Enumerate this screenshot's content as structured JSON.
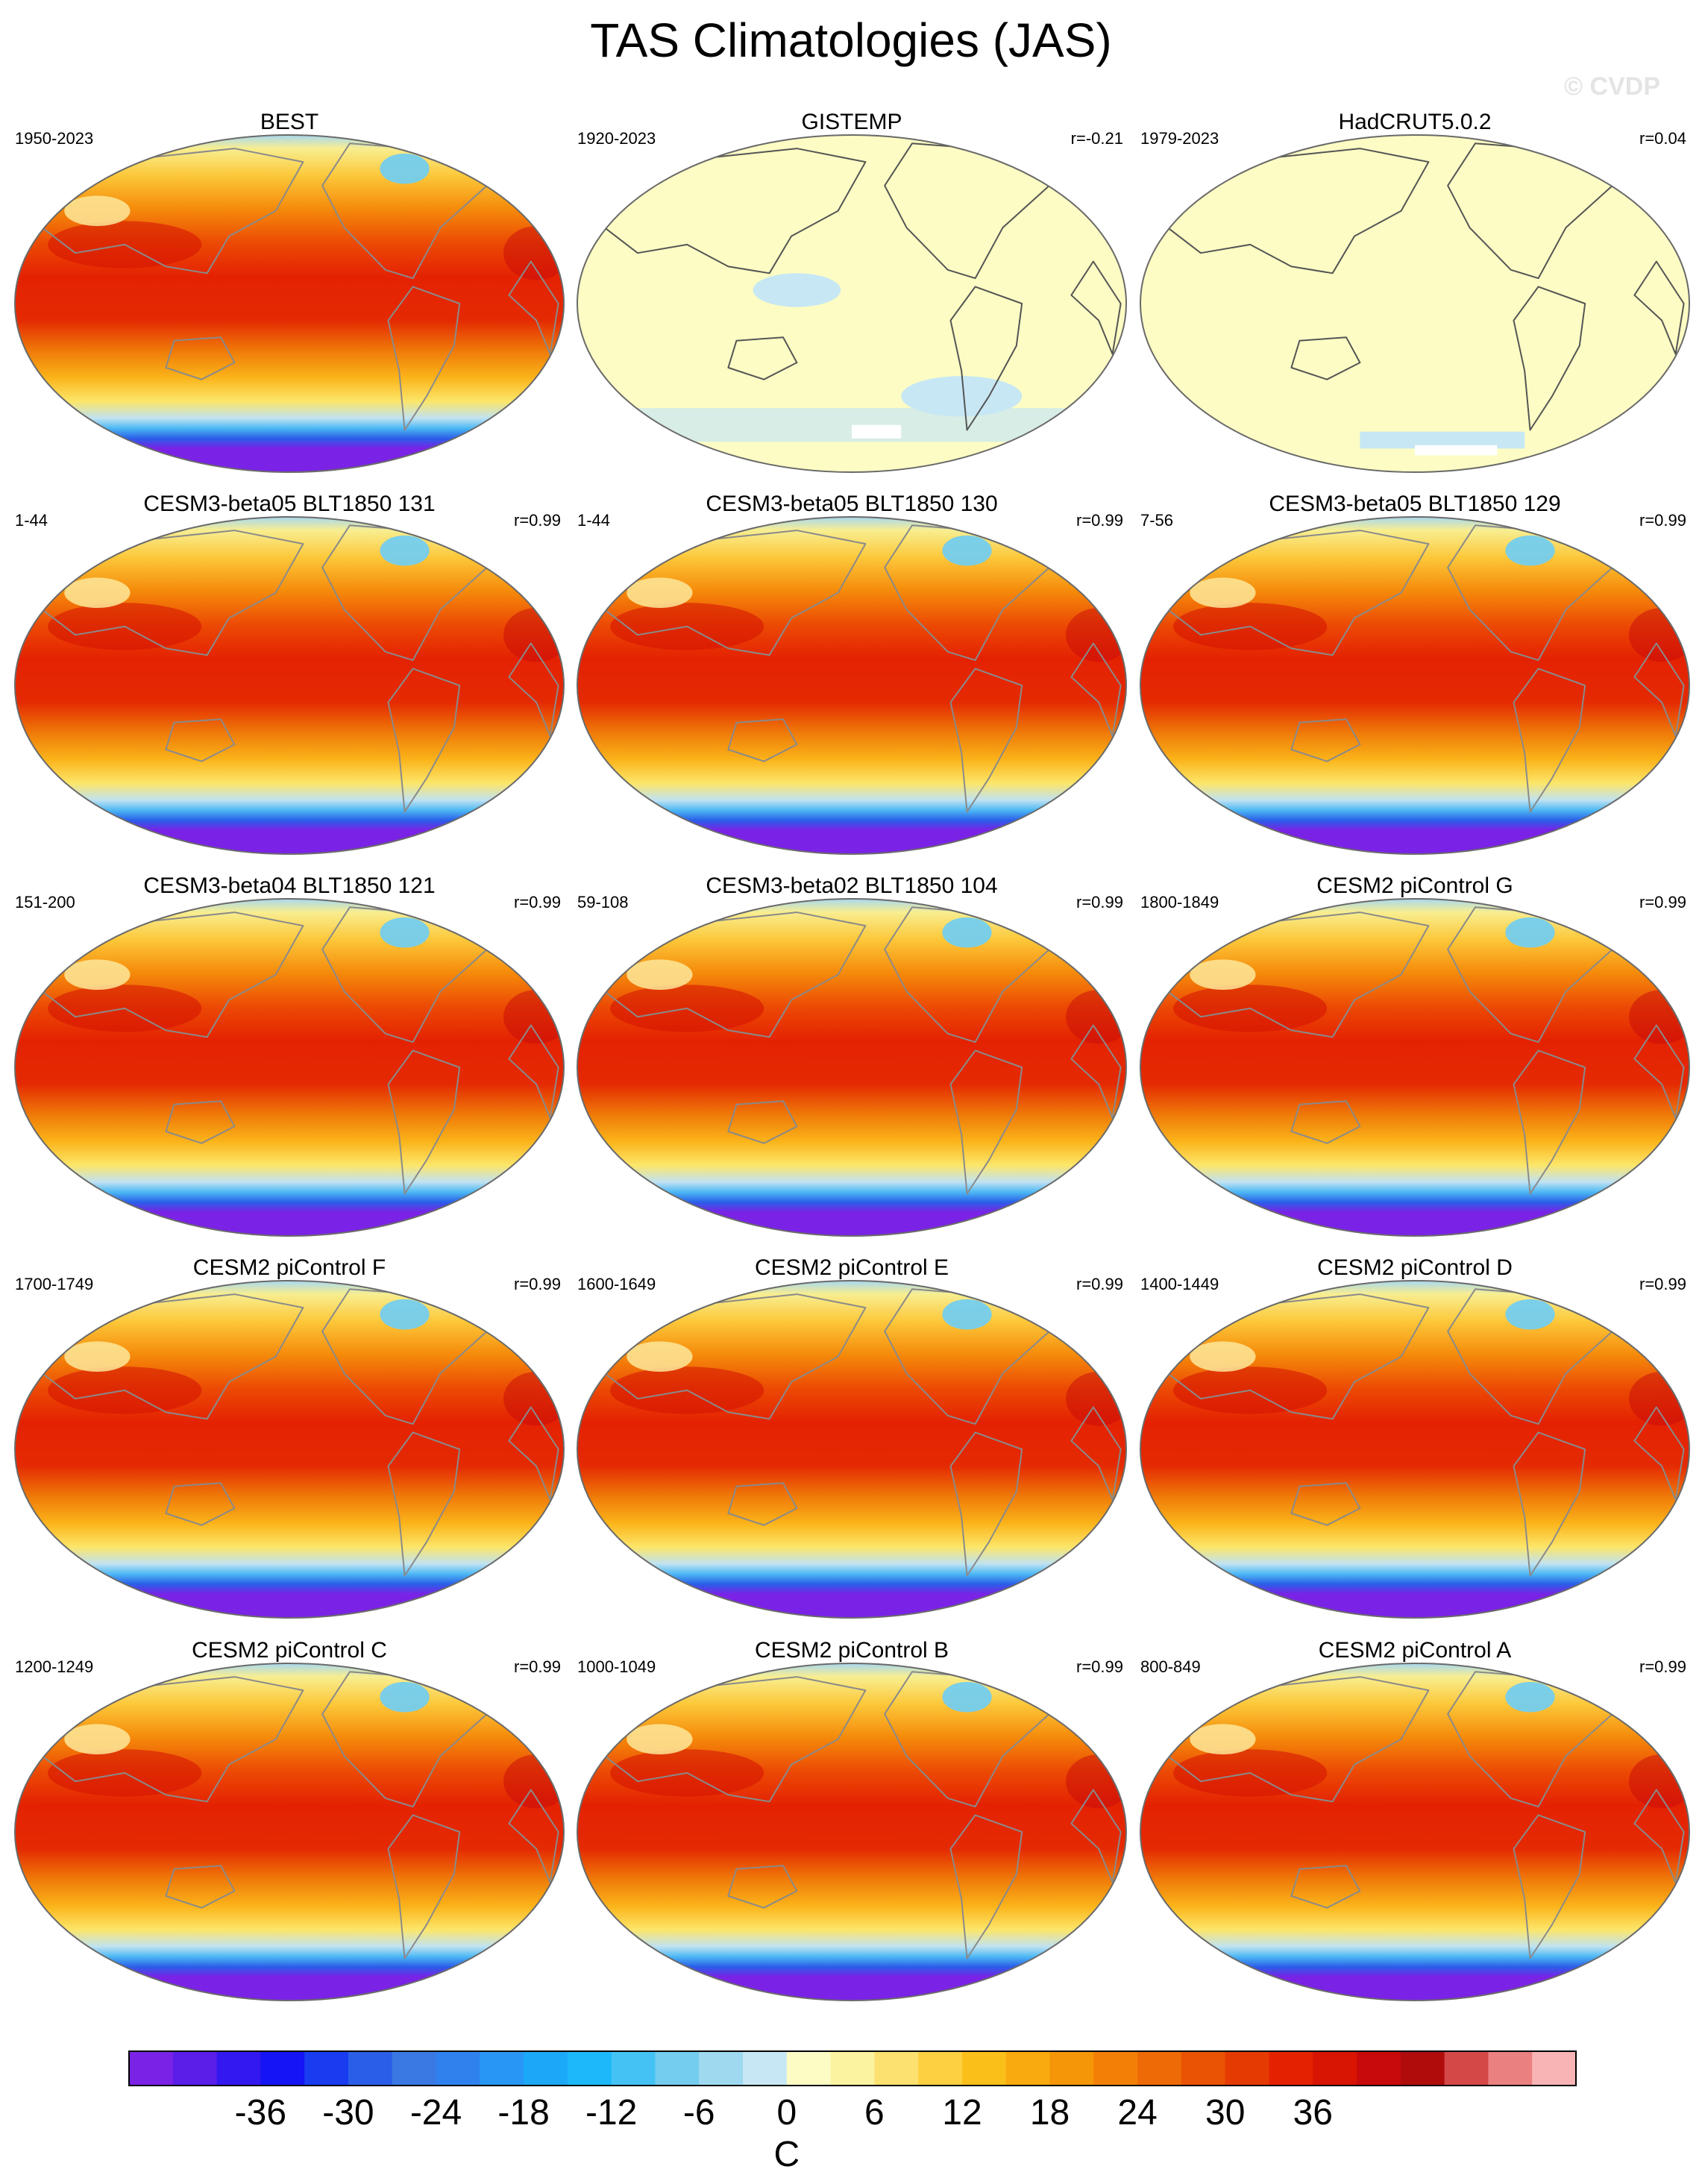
{
  "title": "TAS Climatologies (JAS)",
  "watermark": "© CVDP",
  "panels": [
    {
      "title": "BEST",
      "period": "1950-2023",
      "corr": "",
      "style": "full"
    },
    {
      "title": "GISTEMP",
      "period": "1920-2023",
      "corr": "r=-0.21",
      "style": "pale"
    },
    {
      "title": "HadCRUT5.0.2",
      "period": "1979-2023",
      "corr": "r=0.04",
      "style": "pale2"
    },
    {
      "title": "CESM3-beta05 BLT1850 131",
      "period": "1-44",
      "corr": "r=0.99",
      "style": "full"
    },
    {
      "title": "CESM3-beta05 BLT1850 130",
      "period": "1-44",
      "corr": "r=0.99",
      "style": "full"
    },
    {
      "title": "CESM3-beta05 BLT1850 129",
      "period": "7-56",
      "corr": "r=0.99",
      "style": "full"
    },
    {
      "title": "CESM3-beta04 BLT1850 121",
      "period": "151-200",
      "corr": "r=0.99",
      "style": "full"
    },
    {
      "title": "CESM3-beta02 BLT1850 104",
      "period": "59-108",
      "corr": "r=0.99",
      "style": "full"
    },
    {
      "title": "CESM2 piControl G",
      "period": "1800-1849",
      "corr": "r=0.99",
      "style": "full"
    },
    {
      "title": "CESM2 piControl F",
      "period": "1700-1749",
      "corr": "r=0.99",
      "style": "full"
    },
    {
      "title": "CESM2 piControl E",
      "period": "1600-1649",
      "corr": "r=0.99",
      "style": "full"
    },
    {
      "title": "CESM2 piControl D",
      "period": "1400-1449",
      "corr": "r=0.99",
      "style": "full"
    },
    {
      "title": "CESM2 piControl C",
      "period": "1200-1249",
      "corr": "r=0.99",
      "style": "full"
    },
    {
      "title": "CESM2 piControl B",
      "period": "1000-1049",
      "corr": "r=0.99",
      "style": "full"
    },
    {
      "title": "CESM2 piControl A",
      "period": "800-849",
      "corr": "r=0.99",
      "style": "full"
    }
  ],
  "colorbar": {
    "unit": "C",
    "tick_labels": [
      "-36",
      "-30",
      "-24",
      "-18",
      "-12",
      "-6",
      "0",
      "6",
      "12",
      "18",
      "24",
      "30",
      "36"
    ],
    "colors": [
      "#7a22e6",
      "#5a1ee8",
      "#3418f0",
      "#1414f4",
      "#1a3cf0",
      "#2a5ee8",
      "#3a78e4",
      "#2f82ee",
      "#2896f4",
      "#1ca8f8",
      "#1cb8fa",
      "#44c2f4",
      "#74cdee",
      "#9fd9f0",
      "#c7e7f4",
      "#fcfcc4",
      "#fcf3a0",
      "#fce070",
      "#fcd040",
      "#fbbf1a",
      "#f8aa0e",
      "#f59608",
      "#f28006",
      "#ee6a06",
      "#ea5204",
      "#e63a03",
      "#e42202",
      "#d81402",
      "#c80a0a",
      "#b00c0c",
      "#d54848",
      "#ea8080",
      "#f8b4b4"
    ]
  }
}
